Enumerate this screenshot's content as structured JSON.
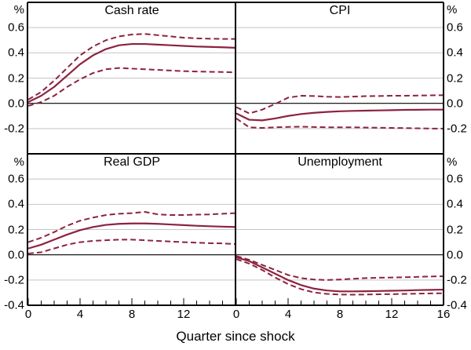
{
  "figure": {
    "unit": "%",
    "colors": {
      "line": "#8c2340",
      "grid": "#c4c4c4",
      "axis": "#000000",
      "background": "#ffffff"
    }
  },
  "chart_data": {
    "type": "line",
    "layout": "2x2-panels",
    "xlabel": "Quarter since shock",
    "unit": "%",
    "x": [
      0,
      1,
      2,
      3,
      4,
      5,
      6,
      7,
      8,
      9,
      10,
      11,
      12,
      13,
      14,
      15,
      16
    ],
    "xlim": [
      0,
      16
    ],
    "ylim": [
      -0.4,
      0.8
    ],
    "grid": "horizontal",
    "x_axis": {
      "left_panel_labels": [
        "0",
        "4",
        "8",
        "12"
      ],
      "left_panel_values": [
        0,
        4,
        8,
        12
      ],
      "right_panel_labels": [
        "0",
        "4",
        "8",
        "12",
        "16"
      ],
      "right_panel_values": [
        0,
        4,
        8,
        12,
        16
      ],
      "minor_tick_every": 1,
      "major_tick_every": 4
    },
    "y_axis": {
      "top_row_labels": [
        "0.6",
        "0.4",
        "0.2",
        "0.0",
        "-0.2"
      ],
      "top_row_values": [
        0.6,
        0.4,
        0.2,
        0.0,
        -0.2
      ],
      "bottom_row_labels": [
        "0.6",
        "0.4",
        "0.2",
        "0.0",
        "-0.2",
        "-0.4"
      ],
      "bottom_row_values": [
        0.6,
        0.4,
        0.2,
        0.0,
        -0.2,
        -0.4
      ]
    },
    "panels": [
      {
        "title": "Cash rate",
        "position": "top-left",
        "series": [
          {
            "name": "response",
            "style": "solid",
            "values": [
              0.01,
              0.06,
              0.13,
              0.22,
              0.31,
              0.38,
              0.43,
              0.46,
              0.47,
              0.47,
              0.465,
              0.46,
              0.455,
              0.45,
              0.447,
              0.444,
              0.44
            ]
          },
          {
            "name": "upper-band",
            "style": "dashed",
            "values": [
              0.03,
              0.09,
              0.18,
              0.28,
              0.38,
              0.45,
              0.5,
              0.53,
              0.545,
              0.55,
              0.54,
              0.53,
              0.52,
              0.515,
              0.512,
              0.51,
              0.51
            ]
          },
          {
            "name": "lower-band",
            "style": "dashed",
            "values": [
              -0.02,
              0.01,
              0.06,
              0.13,
              0.19,
              0.24,
              0.27,
              0.28,
              0.275,
              0.27,
              0.265,
              0.26,
              0.255,
              0.252,
              0.25,
              0.248,
              0.245
            ]
          }
        ]
      },
      {
        "title": "CPI",
        "position": "top-right",
        "series": [
          {
            "name": "response",
            "style": "solid",
            "values": [
              -0.08,
              -0.13,
              -0.135,
              -0.12,
              -0.1,
              -0.085,
              -0.075,
              -0.068,
              -0.063,
              -0.06,
              -0.058,
              -0.056,
              -0.054,
              -0.052,
              -0.051,
              -0.05,
              -0.05
            ]
          },
          {
            "name": "upper-band",
            "style": "dashed",
            "values": [
              -0.03,
              -0.08,
              -0.05,
              -0.005,
              0.045,
              0.06,
              0.058,
              0.052,
              0.05,
              0.053,
              0.057,
              0.058,
              0.06,
              0.06,
              0.062,
              0.063,
              0.065
            ]
          },
          {
            "name": "lower-band",
            "style": "dashed",
            "values": [
              -0.12,
              -0.19,
              -0.195,
              -0.19,
              -0.187,
              -0.185,
              -0.188,
              -0.19,
              -0.19,
              -0.19,
              -0.192,
              -0.193,
              -0.195,
              -0.196,
              -0.198,
              -0.2,
              -0.2
            ]
          }
        ]
      },
      {
        "title": "Real GDP",
        "position": "bottom-left",
        "series": [
          {
            "name": "response",
            "style": "solid",
            "values": [
              0.05,
              0.08,
              0.12,
              0.16,
              0.195,
              0.22,
              0.237,
              0.245,
              0.248,
              0.248,
              0.245,
              0.24,
              0.235,
              0.23,
              0.226,
              0.223,
              0.22
            ]
          },
          {
            "name": "upper-band",
            "style": "dashed",
            "values": [
              0.1,
              0.135,
              0.18,
              0.23,
              0.27,
              0.295,
              0.315,
              0.325,
              0.33,
              0.34,
              0.32,
              0.315,
              0.315,
              0.318,
              0.32,
              0.325,
              0.33
            ]
          },
          {
            "name": "lower-band",
            "style": "dashed",
            "values": [
              0.01,
              0.02,
              0.05,
              0.08,
              0.1,
              0.11,
              0.115,
              0.12,
              0.12,
              0.115,
              0.11,
              0.105,
              0.1,
              0.096,
              0.092,
              0.09,
              0.085
            ]
          }
        ]
      },
      {
        "title": "Unemployment",
        "position": "bottom-right",
        "series": [
          {
            "name": "response",
            "style": "solid",
            "values": [
              -0.02,
              -0.05,
              -0.1,
              -0.15,
              -0.2,
              -0.24,
              -0.268,
              -0.283,
              -0.29,
              -0.29,
              -0.289,
              -0.287,
              -0.285,
              -0.283,
              -0.28,
              -0.278,
              -0.276
            ]
          },
          {
            "name": "upper-band",
            "style": "dashed",
            "values": [
              -0.01,
              -0.04,
              -0.08,
              -0.12,
              -0.16,
              -0.185,
              -0.196,
              -0.2,
              -0.196,
              -0.19,
              -0.185,
              -0.182,
              -0.18,
              -0.178,
              -0.175,
              -0.172,
              -0.17
            ]
          },
          {
            "name": "lower-band",
            "style": "dashed",
            "values": [
              -0.035,
              -0.07,
              -0.12,
              -0.18,
              -0.232,
              -0.272,
              -0.298,
              -0.31,
              -0.315,
              -0.316,
              -0.315,
              -0.313,
              -0.312,
              -0.31,
              -0.308,
              -0.306,
              -0.305
            ]
          }
        ]
      }
    ]
  }
}
